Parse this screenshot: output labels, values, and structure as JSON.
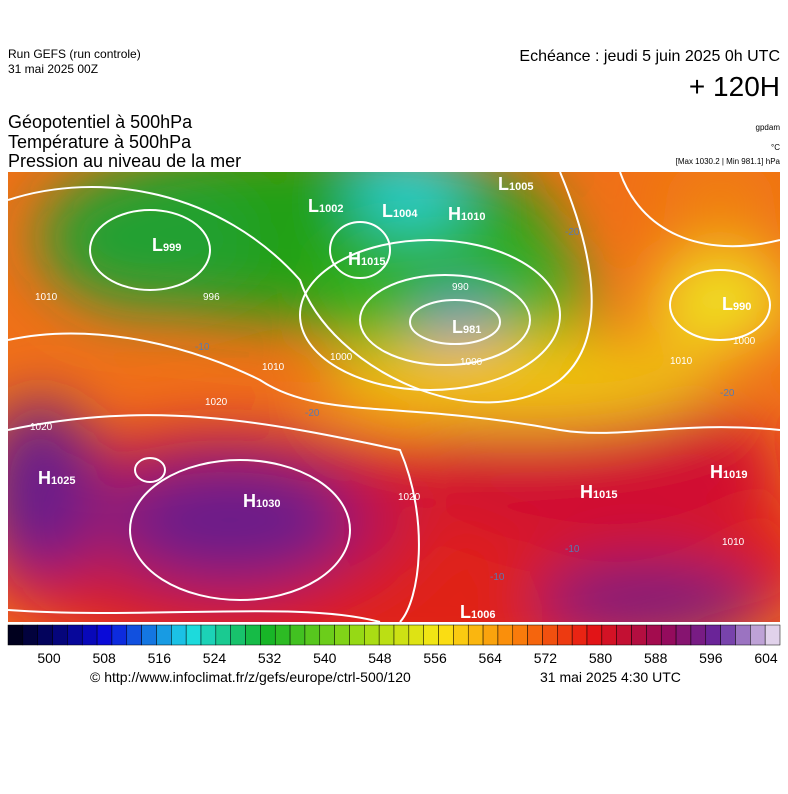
{
  "header": {
    "run": "Run GEFS (run controle)",
    "run_date": "31 mai 2025 00Z",
    "valid": "Echéance : jeudi 5 juin 2025 0h UTC",
    "lead": "+ 120H",
    "fields": [
      "Géopotentiel à 500hPa",
      "Température à 500hPa",
      "Pression au niveau de la mer"
    ],
    "units": [
      "gpdam",
      "°C",
      "[Max 1030.2 | Min 981.1] hPa"
    ]
  },
  "map": {
    "centers": [
      {
        "letter": "L",
        "value": "1002"
      },
      {
        "letter": "L",
        "value": "1004"
      },
      {
        "letter": "H",
        "value": "1010"
      },
      {
        "letter": "L",
        "value": "1005"
      },
      {
        "letter": "L",
        "value": "999"
      },
      {
        "letter": "H",
        "value": "1015"
      },
      {
        "letter": "L",
        "value": "981"
      },
      {
        "letter": "L",
        "value": "990"
      },
      {
        "letter": "H",
        "value": "1025"
      },
      {
        "letter": "H",
        "value": "1030"
      },
      {
        "letter": "H",
        "value": "1015"
      },
      {
        "letter": "H",
        "value": "1019"
      },
      {
        "letter": "L",
        "value": "1006"
      }
    ],
    "isobars": [
      "1010",
      "996",
      "990",
      "1000",
      "1000",
      "1010",
      "1020",
      "1020",
      "1020",
      "1010",
      "1000",
      "1010"
    ],
    "isotherms": [
      "-20",
      "-20",
      "-10",
      "-10",
      "-10",
      "-20"
    ]
  },
  "colorbar": {
    "ticks": [
      500,
      508,
      516,
      524,
      532,
      540,
      548,
      556,
      564,
      572,
      580,
      588,
      596,
      604
    ]
  },
  "footer": {
    "source": "© http://www.infoclimat.fr/z/gefs/europe/ctrl-500/120",
    "issued": "31 mai 2025  4:30 UTC"
  }
}
